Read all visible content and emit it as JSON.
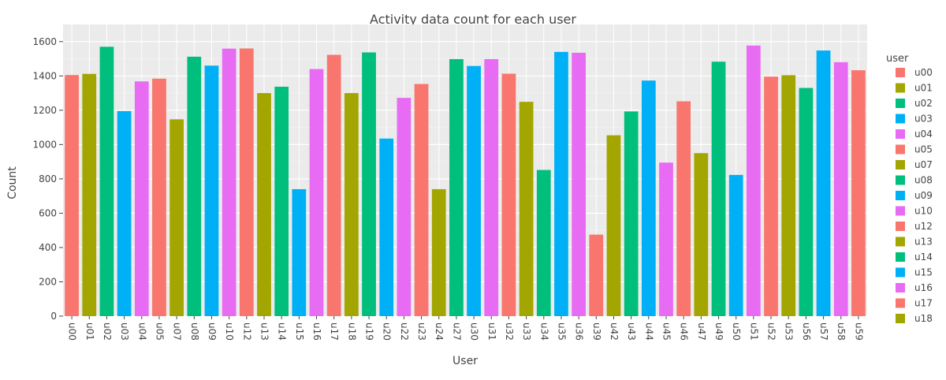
{
  "chart_data": {
    "type": "bar",
    "title": "Activity data count for each user",
    "xlabel": "User",
    "ylabel": "Count",
    "ylim": [
      0,
      1700
    ],
    "yticks": [
      0,
      200,
      400,
      600,
      800,
      1000,
      1200,
      1400,
      1600
    ],
    "grid": true,
    "legend_title": "user",
    "legend_placement": "right",
    "palette": [
      "#F8766D",
      "#A3A500",
      "#00BF7D",
      "#00B0F6",
      "#E76BF3"
    ],
    "categories": [
      "u00",
      "u01",
      "u02",
      "u03",
      "u04",
      "u05",
      "u07",
      "u08",
      "u09",
      "u10",
      "u12",
      "u13",
      "u14",
      "u15",
      "u16",
      "u17",
      "u18",
      "u19",
      "u20",
      "u22",
      "u23",
      "u24",
      "u27",
      "u30",
      "u31",
      "u32",
      "u33",
      "u34",
      "u35",
      "u36",
      "u39",
      "u42",
      "u43",
      "u44",
      "u45",
      "u46",
      "u47",
      "u49",
      "u50",
      "u51",
      "u52",
      "u53",
      "u56",
      "u57",
      "u58",
      "u59"
    ],
    "values": [
      1405,
      1412,
      1570,
      1195,
      1368,
      1384,
      1147,
      1512,
      1460,
      1559,
      1560,
      1300,
      1337,
      740,
      1440,
      1523,
      1300,
      1537,
      1035,
      1272,
      1353,
      740,
      1498,
      1458,
      1498,
      1413,
      1249,
      852,
      1540,
      1535,
      475,
      1054,
      1193,
      1373,
      895,
      1252,
      950,
      1483,
      823,
      1577,
      1396,
      1404,
      1330,
      1548,
      1480,
      1433
    ],
    "legend_entries": [
      "u00",
      "u01",
      "u02",
      "u03",
      "u04",
      "u05",
      "u07",
      "u08",
      "u09",
      "u10",
      "u12",
      "u13",
      "u14",
      "u15",
      "u16",
      "u17",
      "u18"
    ]
  }
}
